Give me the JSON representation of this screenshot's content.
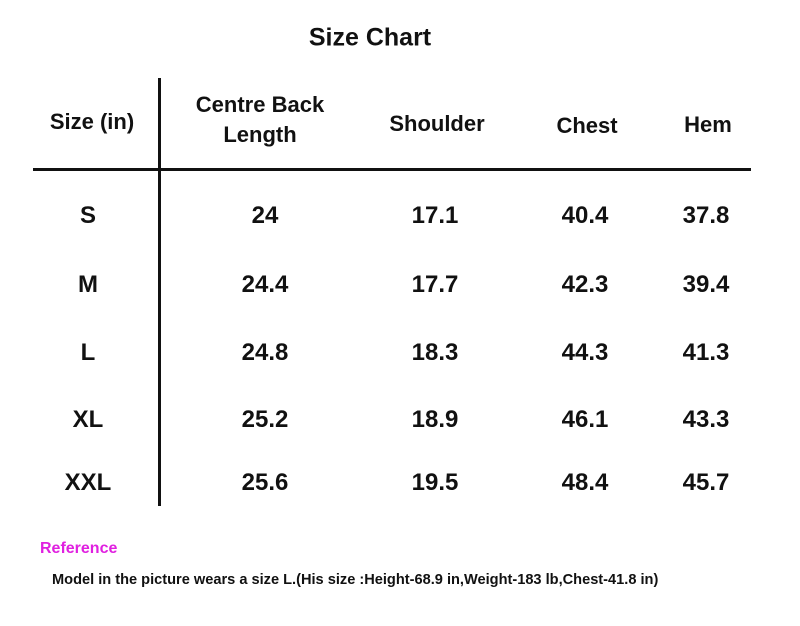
{
  "title": "Size Chart",
  "table": {
    "headers": [
      "Size (in)",
      "Centre Back Length",
      "Shoulder",
      "Chest",
      "Hem"
    ],
    "rows": [
      [
        "S",
        "24",
        "17.1",
        "40.4",
        "37.8"
      ],
      [
        "M",
        "24.4",
        "17.7",
        "42.3",
        "39.4"
      ],
      [
        "L",
        "24.8",
        "18.3",
        "44.3",
        "41.3"
      ],
      [
        "XL",
        "25.2",
        "18.9",
        "46.1",
        "43.3"
      ],
      [
        "XXL",
        "25.6",
        "19.5",
        "48.4",
        "45.7"
      ]
    ]
  },
  "reference": {
    "label": "Reference",
    "note": "Model in the picture wears a size L.(His size :Height-68.9 in,Weight-183 lb,Chest-41.8 in)"
  }
}
